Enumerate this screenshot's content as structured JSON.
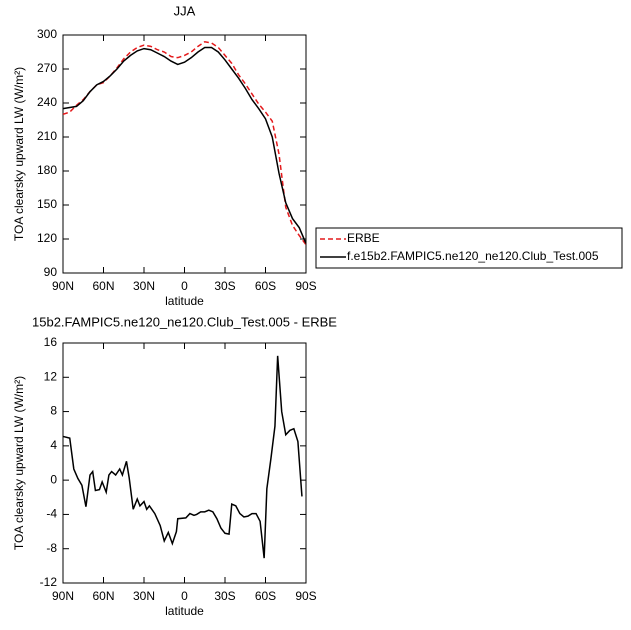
{
  "chart_data": [
    {
      "type": "line",
      "title": "JJA",
      "xlabel": "latitude",
      "ylabel": "TOA clearsky upward LW (W/m²)",
      "x": [
        90,
        85,
        80,
        75,
        70,
        65,
        60,
        55,
        50,
        45,
        40,
        35,
        30,
        25,
        20,
        15,
        10,
        5,
        0,
        -5,
        -10,
        -15,
        -20,
        -25,
        -30,
        -35,
        -40,
        -45,
        -50,
        -55,
        -60,
        -65,
        -70,
        -75,
        -80,
        -85,
        -90
      ],
      "series": [
        {
          "name": "ERBE",
          "color": "#e41a1c",
          "dashed": true,
          "values": [
            230,
            232,
            238,
            243,
            250,
            256,
            258,
            264,
            271,
            279,
            285,
            289,
            291,
            290,
            287,
            285,
            281,
            280,
            282,
            285,
            290,
            294,
            293,
            289,
            282,
            275,
            265,
            257,
            248,
            239,
            232,
            224,
            195,
            148,
            132,
            123,
            115
          ]
        },
        {
          "name": "f.e15b2.FAMPIC5.ne120_ne120.Club_Test.005",
          "color": "#000000",
          "dashed": false,
          "values": [
            235,
            236,
            237,
            242,
            250,
            256,
            259,
            264,
            270,
            277,
            282,
            286,
            288,
            287,
            284,
            281,
            277,
            274,
            276,
            280,
            285,
            289,
            289,
            285,
            278,
            270,
            262,
            253,
            243,
            235,
            226,
            210,
            178,
            152,
            138,
            130,
            116
          ]
        }
      ],
      "xlim": [
        90,
        -90
      ],
      "xticks": [
        {
          "value": 90,
          "label": "90N"
        },
        {
          "value": 60,
          "label": "60N"
        },
        {
          "value": 30,
          "label": "30N"
        },
        0,
        {
          "value": -30,
          "label": "30S"
        },
        {
          "value": -60,
          "label": "60S"
        },
        {
          "value": -90,
          "label": "90S"
        }
      ],
      "ylim": [
        90,
        300
      ],
      "yticks": [
        90,
        120,
        150,
        180,
        210,
        240,
        270,
        300
      ],
      "legend": "right"
    },
    {
      "type": "line",
      "title": "15b2.FAMPIC5.ne120_ne120.Club_Test.005 - ERBE",
      "xlabel": "latitude",
      "ylabel": "TOA clearsky upward LW (W/m²)",
      "color": "#000000",
      "x": [
        90,
        85,
        82,
        79,
        76,
        73,
        70,
        68,
        66,
        63,
        61,
        58,
        56,
        54,
        51,
        48,
        46,
        43,
        41,
        38,
        35,
        33,
        30,
        28,
        26,
        22,
        18,
        15,
        12,
        9,
        6,
        5,
        -1,
        -4,
        -7,
        -9,
        -12,
        -15,
        -18,
        -21,
        -24,
        -27,
        -30,
        -33,
        -35,
        -38,
        -41,
        -44,
        -47,
        -50,
        -53,
        -56,
        -59,
        -61,
        -64,
        -67,
        -69,
        -72,
        -75,
        -78,
        -81,
        -84,
        -87
      ],
      "values": [
        5.1,
        4.9,
        1.3,
        0.2,
        -0.6,
        -3.1,
        0.6,
        1.0,
        -1.2,
        -1.1,
        -0.2,
        -1.4,
        0.6,
        1.0,
        0.6,
        1.3,
        0.6,
        2.2,
        0.3,
        -3.4,
        -2.2,
        -3.0,
        -2.5,
        -3.4,
        -3.0,
        -3.9,
        -5.3,
        -7.1,
        -6.1,
        -7.4,
        -6.0,
        -4.5,
        -4.4,
        -3.9,
        -4.1,
        -4.0,
        -3.7,
        -3.7,
        -3.5,
        -3.7,
        -4.5,
        -5.6,
        -6.2,
        -6.3,
        -2.8,
        -3.0,
        -3.9,
        -4.3,
        -4.2,
        -3.9,
        -3.9,
        -4.8,
        -9.1,
        -1.0,
        2.5,
        6.3,
        14.5,
        8.0,
        5.3,
        5.8,
        6.0,
        4.5,
        -1.9
      ],
      "xlim": [
        90,
        -90
      ],
      "xticks": [
        {
          "value": 90,
          "label": "90N"
        },
        {
          "value": 60,
          "label": "60N"
        },
        {
          "value": 30,
          "label": "30N"
        },
        0,
        {
          "value": -30,
          "label": "30S"
        },
        {
          "value": -60,
          "label": "60S"
        },
        {
          "value": -90,
          "label": "90S"
        }
      ],
      "ylim": [
        -12,
        16
      ],
      "yticks": [
        -12,
        -8,
        -4,
        0,
        4,
        8,
        12,
        16
      ]
    }
  ]
}
